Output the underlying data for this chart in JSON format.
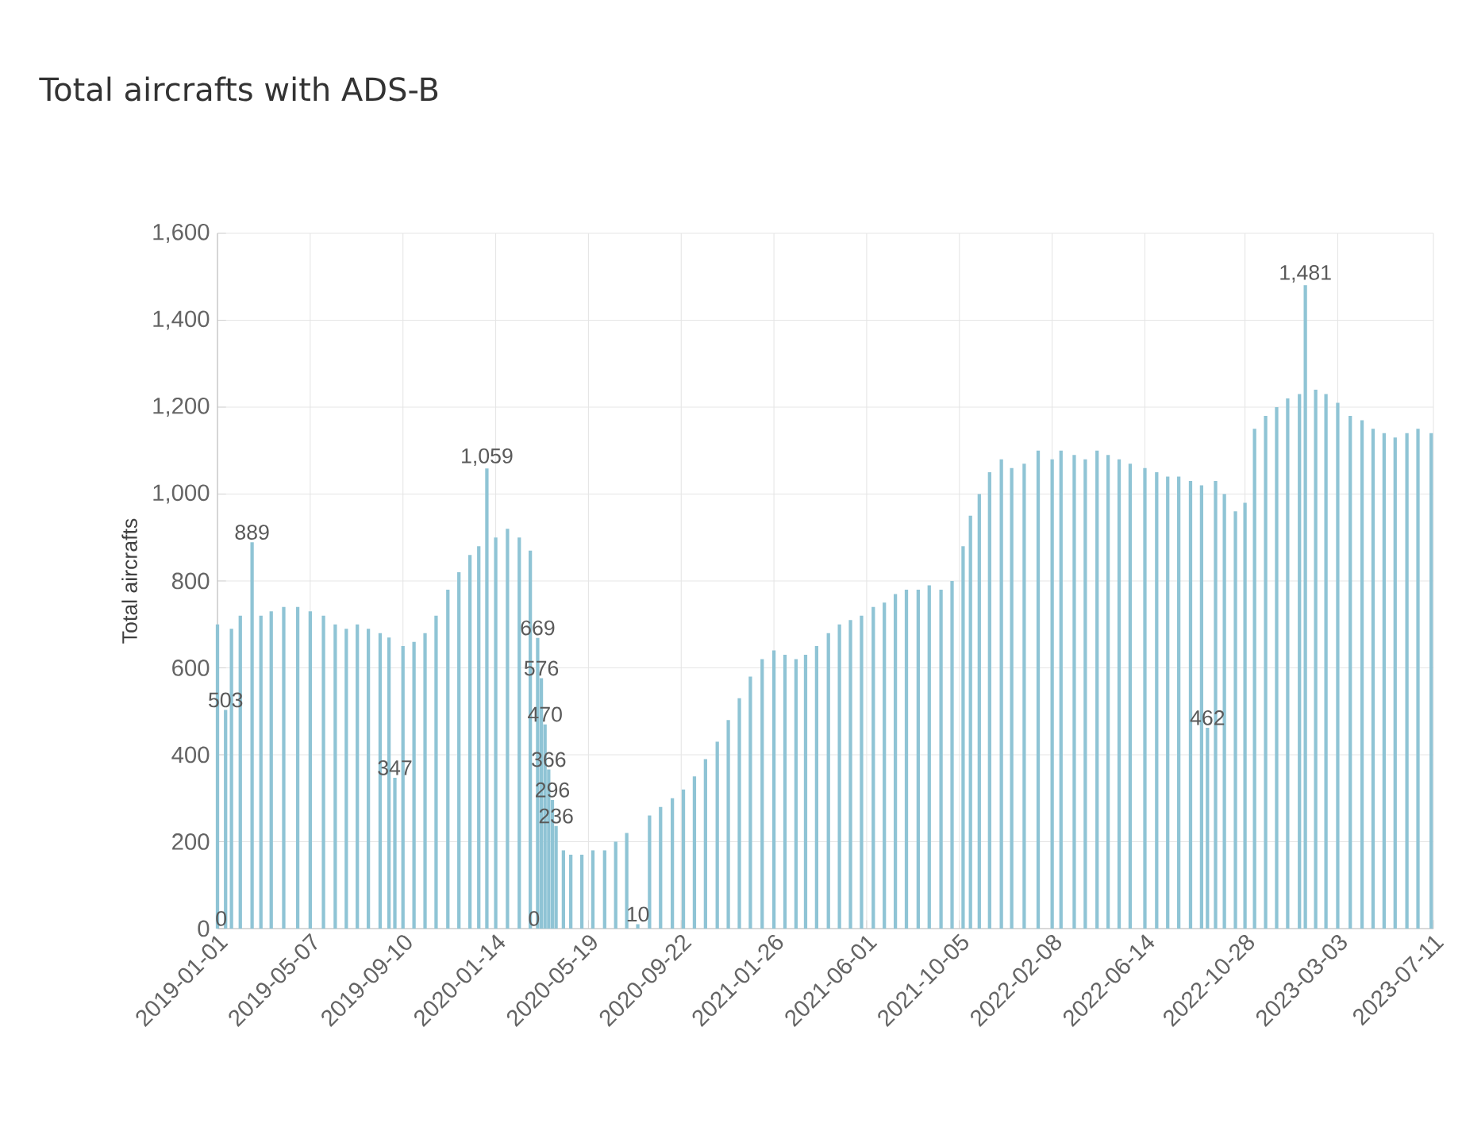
{
  "chart_data": {
    "type": "bar",
    "title": "Total aircrafts with ADS-B",
    "ylabel": "Total aircrafts",
    "x": [
      "2019-01-01",
      "2019-01-06",
      "2019-01-12",
      "2019-01-20",
      "2019-02-01",
      "2019-02-17",
      "2019-03-01",
      "2019-03-15",
      "2019-04-01",
      "2019-04-20",
      "2019-05-07",
      "2019-05-25",
      "2019-06-10",
      "2019-06-25",
      "2019-07-10",
      "2019-07-25",
      "2019-08-10",
      "2019-08-22",
      "2019-08-30",
      "2019-09-10",
      "2019-09-25",
      "2019-10-10",
      "2019-10-25",
      "2019-11-10",
      "2019-11-25",
      "2019-12-10",
      "2019-12-22",
      "2020-01-02",
      "2020-01-14",
      "2020-01-30",
      "2020-02-15",
      "2020-03-01",
      "2020-03-06",
      "2020-03-11",
      "2020-03-16",
      "2020-03-21",
      "2020-03-26",
      "2020-03-31",
      "2020-04-05",
      "2020-04-15",
      "2020-04-25",
      "2020-05-10",
      "2020-05-25",
      "2020-06-10",
      "2020-06-25",
      "2020-07-10",
      "2020-07-25",
      "2020-08-10",
      "2020-08-25",
      "2020-09-10",
      "2020-09-25",
      "2020-10-10",
      "2020-10-25",
      "2020-11-10",
      "2020-11-25",
      "2020-12-10",
      "2020-12-25",
      "2021-01-10",
      "2021-01-26",
      "2021-02-10",
      "2021-02-25",
      "2021-03-10",
      "2021-03-25",
      "2021-04-10",
      "2021-04-25",
      "2021-05-10",
      "2021-05-25",
      "2021-06-10",
      "2021-06-25",
      "2021-07-10",
      "2021-07-25",
      "2021-08-10",
      "2021-08-25",
      "2021-09-10",
      "2021-09-25",
      "2021-10-10",
      "2021-10-20",
      "2021-11-01",
      "2021-11-15",
      "2021-12-01",
      "2021-12-15",
      "2022-01-01",
      "2022-01-20",
      "2022-02-08",
      "2022-02-20",
      "2022-03-10",
      "2022-03-25",
      "2022-04-10",
      "2022-04-25",
      "2022-05-10",
      "2022-05-25",
      "2022-06-14",
      "2022-06-30",
      "2022-07-15",
      "2022-07-30",
      "2022-08-15",
      "2022-08-30",
      "2022-09-07",
      "2022-09-18",
      "2022-09-30",
      "2022-10-15",
      "2022-10-28",
      "2022-11-10",
      "2022-11-25",
      "2022-12-10",
      "2022-12-25",
      "2023-01-10",
      "2023-01-18",
      "2023-02-01",
      "2023-02-15",
      "2023-03-03",
      "2023-03-20",
      "2023-04-05",
      "2023-04-20",
      "2023-05-05",
      "2023-05-20",
      "2023-06-05",
      "2023-06-20",
      "2023-07-08"
    ],
    "values": [
      700,
      0,
      503,
      690,
      720,
      889,
      720,
      730,
      740,
      740,
      730,
      720,
      700,
      690,
      700,
      690,
      680,
      670,
      347,
      650,
      660,
      680,
      720,
      780,
      820,
      860,
      880,
      1059,
      900,
      920,
      900,
      870,
      0,
      669,
      576,
      470,
      366,
      296,
      236,
      180,
      170,
      170,
      180,
      180,
      200,
      220,
      10,
      260,
      280,
      300,
      320,
      350,
      390,
      430,
      480,
      530,
      580,
      620,
      640,
      630,
      620,
      630,
      650,
      680,
      700,
      710,
      720,
      740,
      750,
      770,
      780,
      780,
      790,
      780,
      800,
      880,
      950,
      1000,
      1050,
      1080,
      1060,
      1070,
      1100,
      1080,
      1100,
      1090,
      1080,
      1100,
      1090,
      1080,
      1070,
      1060,
      1050,
      1040,
      1040,
      1030,
      1020,
      462,
      1030,
      1000,
      960,
      980,
      1150,
      1180,
      1200,
      1220,
      1230,
      1481,
      1240,
      1230,
      1210,
      1180,
      1170,
      1150,
      1140,
      1130,
      1140,
      1150,
      1140
    ],
    "value_labels": [
      null,
      "0",
      "503",
      null,
      null,
      "889",
      null,
      null,
      null,
      null,
      null,
      null,
      null,
      null,
      null,
      null,
      null,
      null,
      "347",
      null,
      null,
      null,
      null,
      null,
      null,
      null,
      null,
      "1,059",
      null,
      null,
      null,
      null,
      "0",
      "669",
      "576",
      "470",
      "366",
      "296",
      "236",
      null,
      null,
      null,
      null,
      null,
      null,
      null,
      "10",
      null,
      null,
      null,
      null,
      null,
      null,
      null,
      null,
      null,
      null,
      null,
      null,
      null,
      null,
      null,
      null,
      null,
      null,
      null,
      null,
      null,
      null,
      null,
      null,
      null,
      null,
      null,
      null,
      null,
      null,
      null,
      null,
      null,
      null,
      null,
      null,
      null,
      null,
      null,
      null,
      null,
      null,
      null,
      null,
      null,
      null,
      null,
      null,
      null,
      null,
      "462",
      null,
      null,
      null,
      null,
      null,
      null,
      null,
      null,
      null,
      "1,481",
      null,
      null,
      null,
      null,
      null,
      null,
      null,
      null,
      null,
      null,
      null
    ],
    "color": "#8fc4d5",
    "xlim": [
      "2019-01-01",
      "2023-07-11"
    ],
    "xticks": [
      "2019-01-01",
      "2019-05-07",
      "2019-09-10",
      "2020-01-14",
      "2020-05-19",
      "2020-09-22",
      "2021-01-26",
      "2021-06-01",
      "2021-10-05",
      "2022-02-08",
      "2022-06-14",
      "2022-10-28",
      "2023-03-03",
      "2023-07-11"
    ],
    "ylim": [
      0,
      1600
    ],
    "yticks": [
      {
        "value": 0,
        "label": "0"
      },
      {
        "value": 200,
        "label": "200"
      },
      {
        "value": 400,
        "label": "400"
      },
      {
        "value": 600,
        "label": "600"
      },
      {
        "value": 800,
        "label": "800"
      },
      {
        "value": 1000,
        "label": "1,000"
      },
      {
        "value": 1200,
        "label": "1,200"
      },
      {
        "value": 1400,
        "label": "1,400"
      },
      {
        "value": 1600,
        "label": "1,600"
      }
    ],
    "grid": true
  }
}
